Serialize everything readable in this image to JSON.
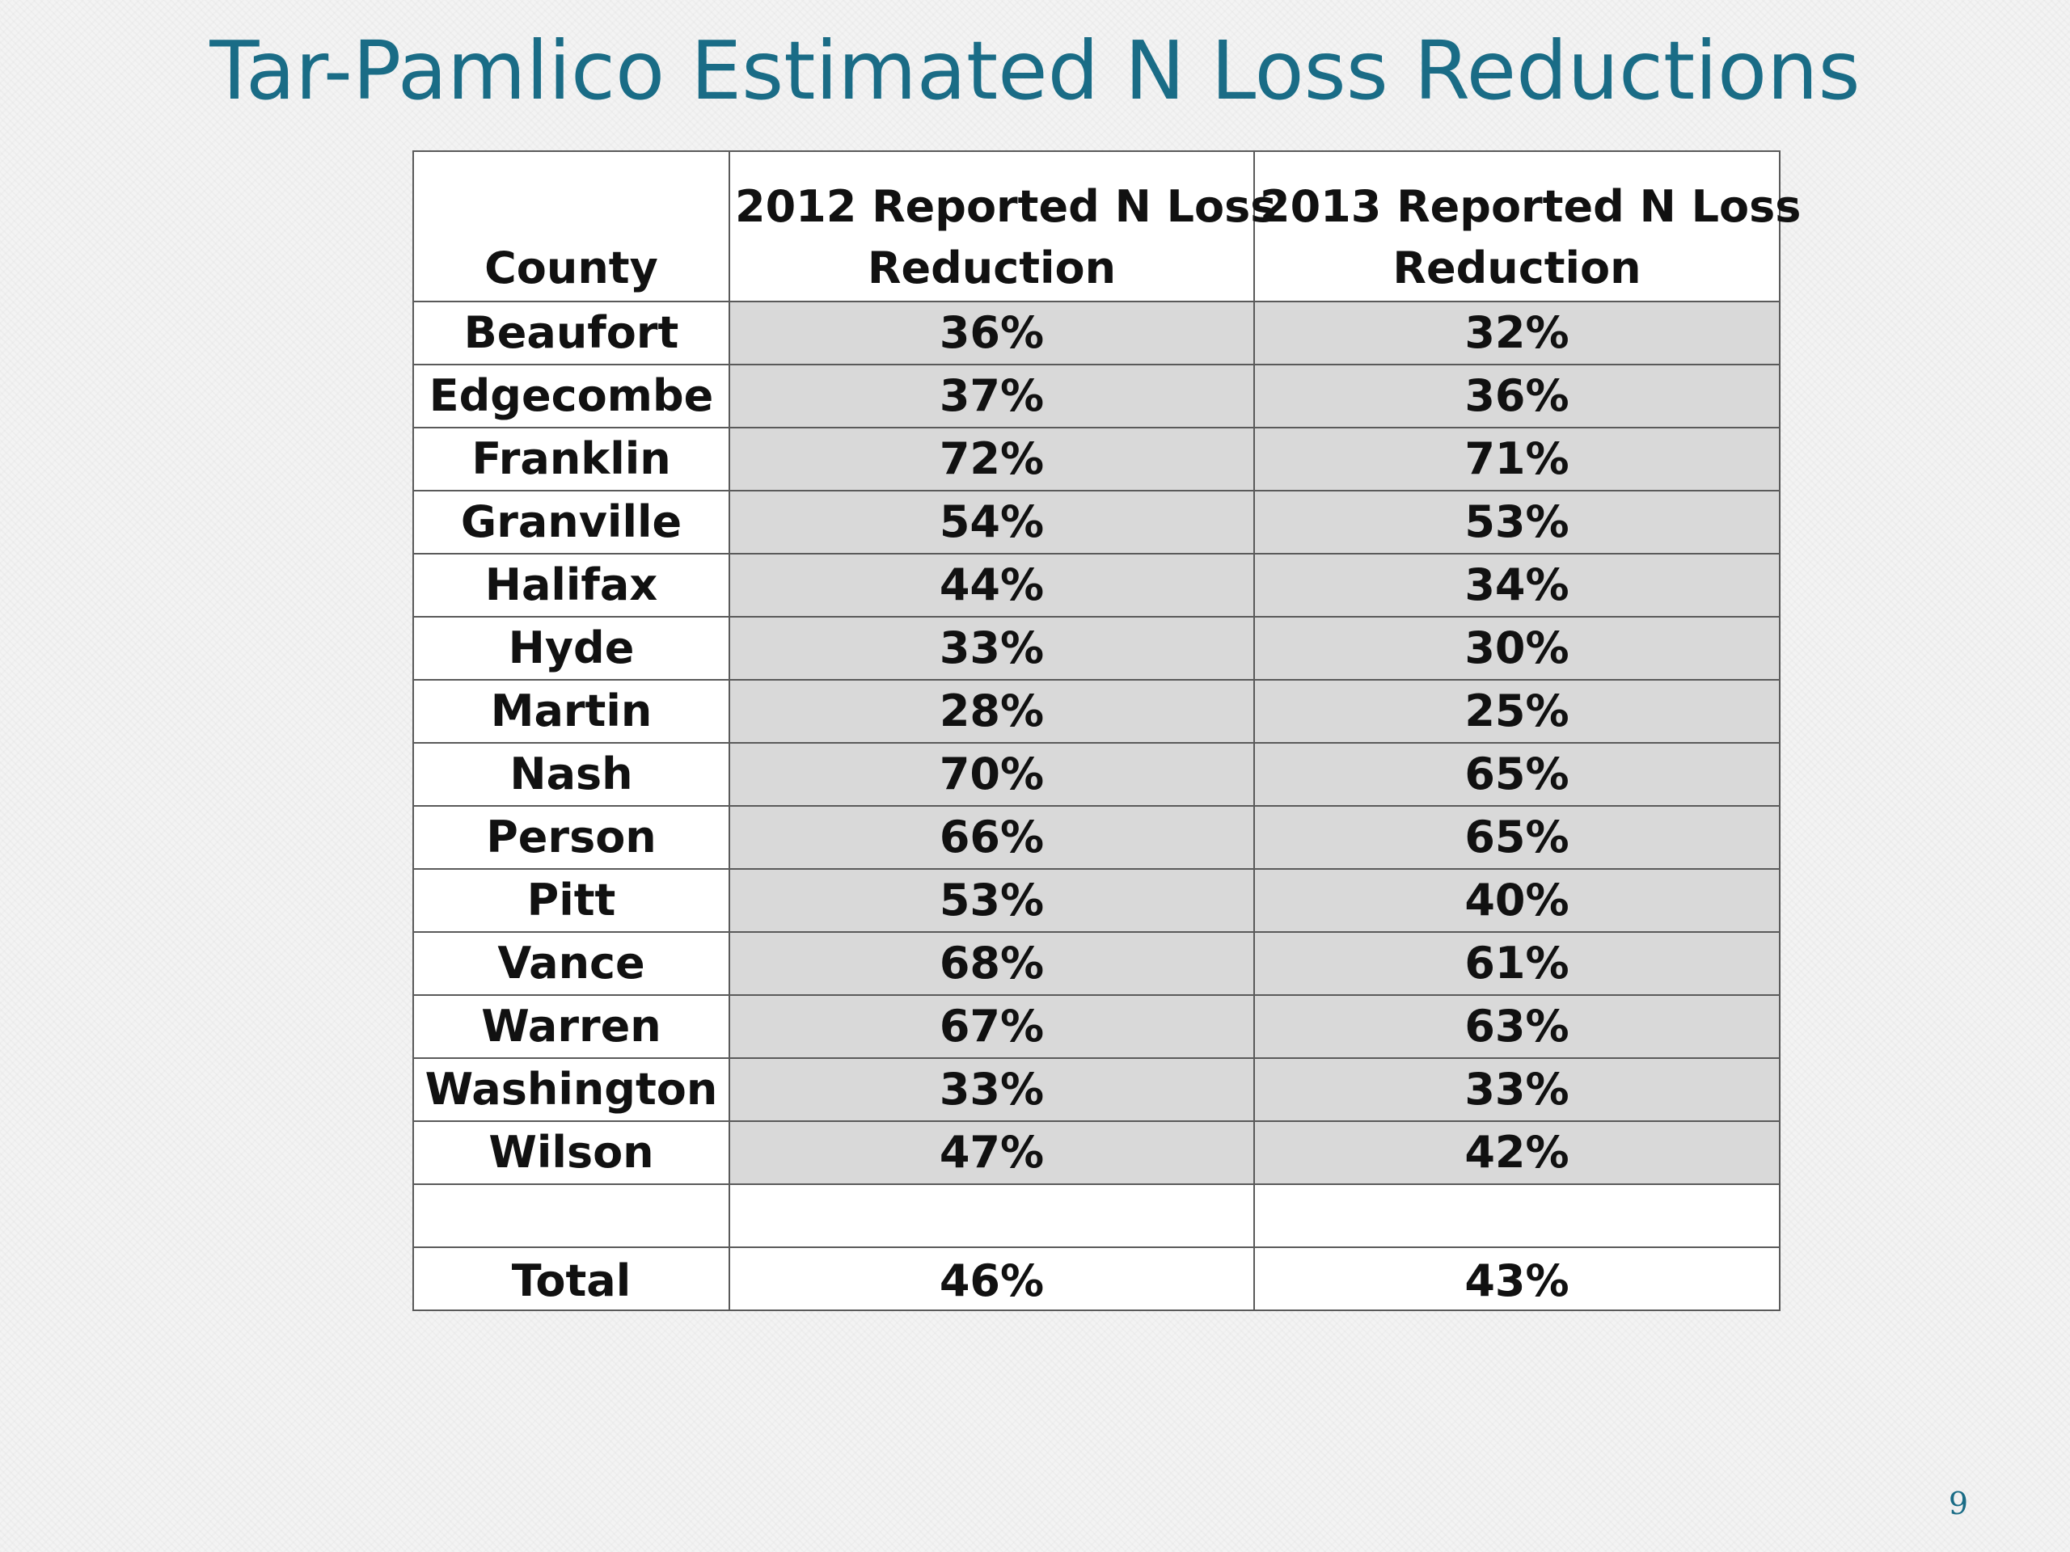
{
  "slide": {
    "title": "Tar-Pamlico Estimated N Loss Reductions",
    "page_number": "9"
  },
  "table": {
    "headers": {
      "county": "County",
      "col_2012_line1": "2012 Reported N Loss",
      "col_2012_line2": "Reduction",
      "col_2013_line1": "2013 Reported N Loss",
      "col_2013_line2": "Reduction"
    },
    "rows": [
      {
        "county": "Beaufort",
        "v2012": "36%",
        "v2013": "32%"
      },
      {
        "county": "Edgecombe",
        "v2012": "37%",
        "v2013": "36%"
      },
      {
        "county": "Franklin",
        "v2012": "72%",
        "v2013": "71%"
      },
      {
        "county": "Granville",
        "v2012": "54%",
        "v2013": "53%"
      },
      {
        "county": "Halifax",
        "v2012": "44%",
        "v2013": "34%"
      },
      {
        "county": "Hyde",
        "v2012": "33%",
        "v2013": "30%"
      },
      {
        "county": "Martin",
        "v2012": "28%",
        "v2013": "25%"
      },
      {
        "county": "Nash",
        "v2012": "70%",
        "v2013": "65%"
      },
      {
        "county": "Person",
        "v2012": "66%",
        "v2013": "65%"
      },
      {
        "county": "Pitt",
        "v2012": "53%",
        "v2013": "40%"
      },
      {
        "county": "Vance",
        "v2012": "68%",
        "v2013": "61%"
      },
      {
        "county": "Warren",
        "v2012": "67%",
        "v2013": "63%"
      },
      {
        "county": "Washington",
        "v2012": "33%",
        "v2013": "33%"
      },
      {
        "county": "Wilson",
        "v2012": "47%",
        "v2013": "42%"
      }
    ],
    "total": {
      "county": "Total",
      "v2012": "46%",
      "v2013": "43%"
    }
  },
  "colors": {
    "title": "#1a6c86",
    "value_cell_fill": "#d9d9d9",
    "border": "#5a5a5a"
  }
}
